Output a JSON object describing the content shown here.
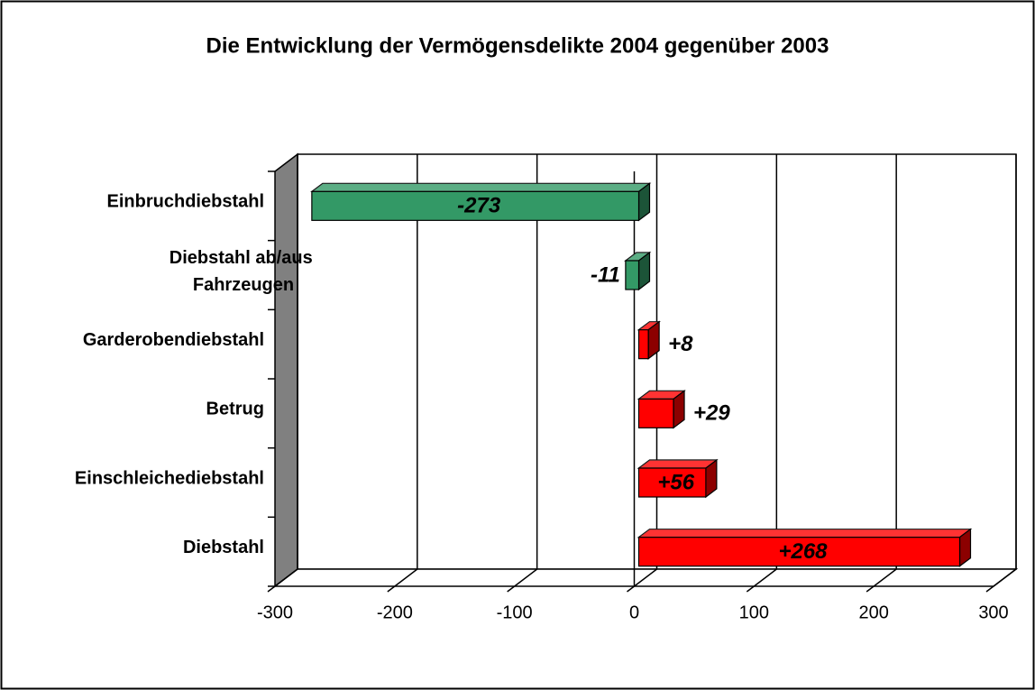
{
  "chart_data": {
    "type": "bar3d_horizontal",
    "title": "Die Entwicklung der Vermögensdelikte 2004 gegenüber 2003",
    "categories": [
      "Einbruchdiebstahl",
      "Diebstahl ab/aus Fahrzeugen",
      "Garderobendiebstahl",
      "Betrug",
      "Einschleichediebstahl",
      "Diebstahl"
    ],
    "values": [
      -273,
      -11,
      8,
      29,
      56,
      268
    ],
    "value_labels": [
      "-273",
      "-11",
      "+8",
      "+29",
      "+56",
      "+268"
    ],
    "colors": [
      "#339966",
      "#339966",
      "#ff0000",
      "#ff0000",
      "#ff0000",
      "#ff0000"
    ],
    "xlim": [
      -300,
      300
    ],
    "xticks": [
      -300,
      -200,
      -100,
      0,
      100,
      200,
      300
    ],
    "grid": true
  }
}
